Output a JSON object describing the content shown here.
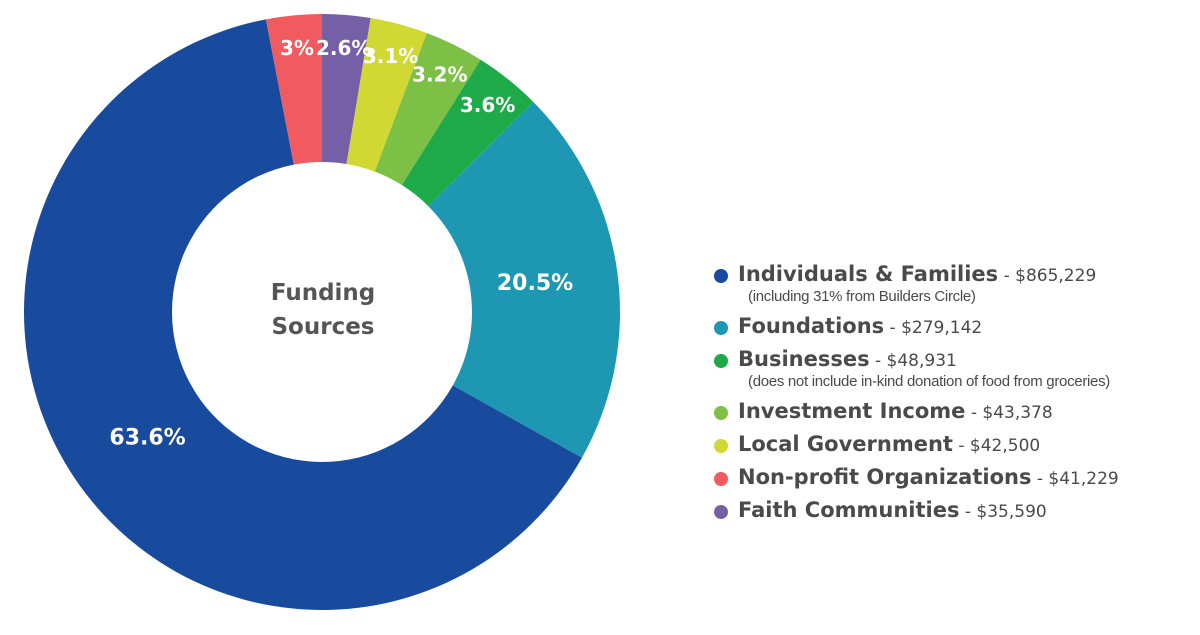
{
  "chart_data": {
    "type": "pie",
    "donut": true,
    "title": "Funding Sources",
    "start": "top",
    "direction": "clockwise",
    "series": [
      {
        "name": "Faith Communities",
        "value": 2.6,
        "label": "2.6%",
        "amount": "$35,590",
        "color": "#7560a8"
      },
      {
        "name": "Local Government",
        "value": 3.1,
        "label": "3.1%",
        "amount": "$42,500",
        "color": "#d1d834"
      },
      {
        "name": "Investment Income",
        "value": 3.2,
        "label": "3.2%",
        "amount": "$43,378",
        "color": "#7cc145"
      },
      {
        "name": "Businesses",
        "value": 3.6,
        "label": "3.6%",
        "amount": "$48,931",
        "color": "#1faa4a",
        "note": "(does not include in-kind donation of food from groceries)"
      },
      {
        "name": "Foundations",
        "value": 20.5,
        "label": "20.5%",
        "amount": "$279,142",
        "color": "#1e98b2"
      },
      {
        "name": "Individuals & Families",
        "value": 63.6,
        "label": "63.6%",
        "amount": "$865,229",
        "color": "#184b9d",
        "note": "(including 31% from Builders Circle)"
      },
      {
        "name": "Non-profit Organizations",
        "value": 3.0,
        "label": "3%",
        "amount": "$41,229",
        "color": "#f15a5e"
      }
    ],
    "legend_order": [
      "Individuals & Families",
      "Foundations",
      "Businesses",
      "Investment Income",
      "Local Government",
      "Non-profit Organizations",
      "Faith Communities"
    ],
    "legend_position": "right"
  },
  "center_title_lines": [
    "Funding",
    "Sources"
  ]
}
